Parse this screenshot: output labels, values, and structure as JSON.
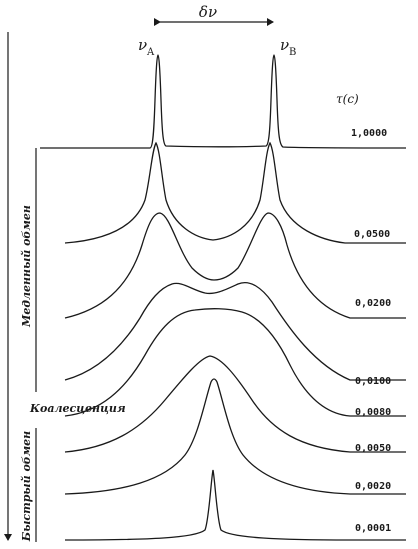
{
  "symbols": {
    "delta_nu": "δν",
    "nu_a": "ν",
    "nu_a_sub": "A",
    "nu_b": "ν",
    "nu_b_sub": "B",
    "tau_label": "τ(c)"
  },
  "side_labels": {
    "slow": "Медленный обмен",
    "coalescence": "Коалесценция",
    "fast": "Быстрый обмен"
  },
  "spectra": [
    {
      "tau": "1,0000",
      "regime": "two sharp peaks"
    },
    {
      "tau": "0,0500",
      "regime": "two broadened peaks"
    },
    {
      "tau": "0,0200",
      "regime": "two broad peaks"
    },
    {
      "tau": "0,0100",
      "regime": "merging peaks"
    },
    {
      "tau": "0,0080",
      "regime": "flat-top band"
    },
    {
      "tau": "0,0050",
      "regime": "single broad peak"
    },
    {
      "tau": "0,0020",
      "regime": "single peak"
    },
    {
      "tau": "0,0001",
      "regime": "single sharp peak"
    }
  ]
}
